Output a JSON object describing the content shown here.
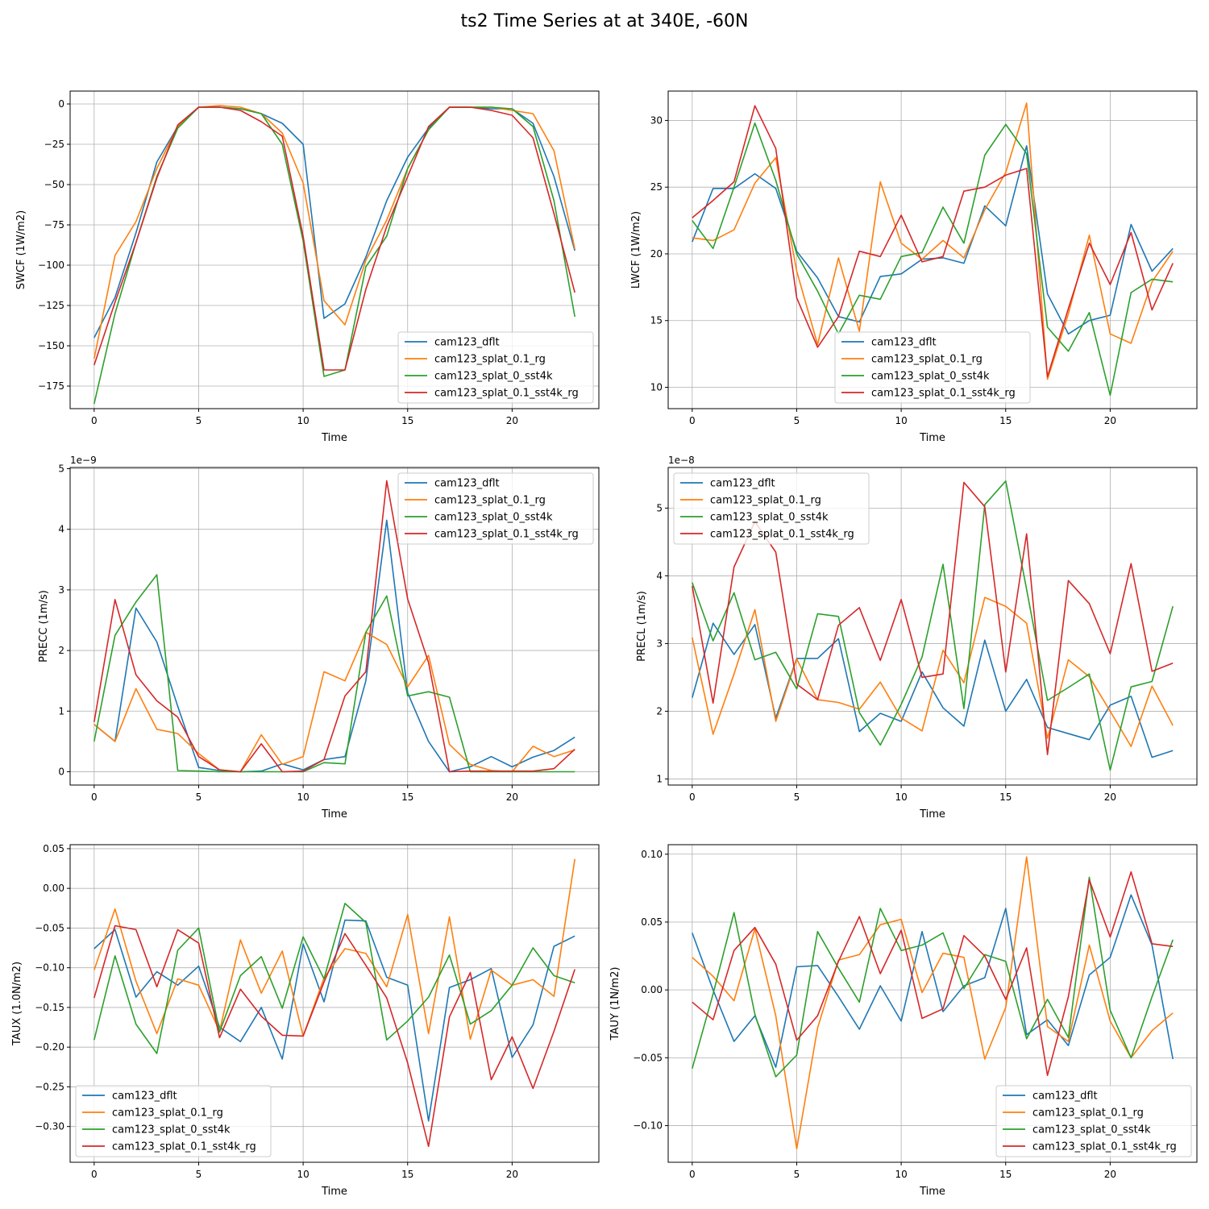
{
  "figure_title": "ts2 Time Series at at 340E, -60N",
  "legend_names": [
    "cam123_dflt",
    "cam123_splat_0.1_rg",
    "cam123_splat_0_sst4k",
    "cam123_splat_0.1_sst4k_rg"
  ],
  "series_colors": [
    "#1f77b4",
    "#ff7f0e",
    "#2ca02c",
    "#d62728"
  ],
  "chart_data": [
    {
      "type": "line",
      "title": "",
      "xlabel": "Time",
      "ylabel": "SWCF (1W/m2)",
      "xlim": [
        -1.15,
        24.15
      ],
      "ylim": [
        -189,
        8
      ],
      "xticks": [
        0,
        5,
        10,
        15,
        20
      ],
      "yticks": [
        0,
        -25,
        -50,
        -75,
        -100,
        -125,
        -150,
        -175
      ],
      "ytick_labels": [
        "0",
        "−25",
        "−50",
        "−75",
        "−100",
        "−125",
        "−150",
        "−175"
      ],
      "offset_label": "",
      "legend_position": "lower-right",
      "x": [
        0,
        1,
        2,
        3,
        4,
        5,
        6,
        7,
        8,
        9,
        10,
        11,
        12,
        13,
        14,
        15,
        16,
        17,
        18,
        19,
        20,
        21,
        22,
        23
      ],
      "series": [
        {
          "name": "cam123_dflt",
          "values": [
            -145,
            -120,
            -80,
            -36,
            -14,
            -2,
            -2,
            -3,
            -6,
            -12,
            -25,
            -133,
            -124,
            -95,
            -60,
            -33,
            -15,
            -2,
            -2,
            -3,
            -3,
            -12,
            -45,
            -91
          ]
        },
        {
          "name": "cam123_splat_0.1_rg",
          "values": [
            -158,
            -94,
            -73,
            -40,
            -14,
            -2,
            -1,
            -2,
            -6,
            -18,
            -49,
            -122,
            -137,
            -97,
            -72,
            -40,
            -16,
            -2,
            -2,
            -2,
            -4,
            -6,
            -29,
            -90
          ]
        },
        {
          "name": "cam123_splat_0_sst4k",
          "values": [
            -186,
            -130,
            -86,
            -45,
            -15,
            -2,
            -2,
            -3,
            -6,
            -25,
            -85,
            -169,
            -165,
            -101,
            -82,
            -40,
            -16,
            -2,
            -2,
            -2,
            -3,
            -14,
            -60,
            -132
          ]
        },
        {
          "name": "cam123_splat_0.1_sst4k_rg",
          "values": [
            -162,
            -123,
            -86,
            -46,
            -13,
            -2,
            -2,
            -4,
            -11,
            -20,
            -82,
            -165,
            -165,
            -115,
            -76,
            -45,
            -14,
            -2,
            -2,
            -4,
            -7,
            -21,
            -68,
            -117
          ]
        }
      ]
    },
    {
      "type": "line",
      "title": "",
      "xlabel": "Time",
      "ylabel": "LWCF (1W/m2)",
      "xlim": [
        -1.15,
        24.15
      ],
      "ylim": [
        8.4,
        32.2
      ],
      "xticks": [
        0,
        5,
        10,
        15,
        20
      ],
      "yticks": [
        10,
        15,
        20,
        25,
        30
      ],
      "ytick_labels": [
        "10",
        "15",
        "20",
        "25",
        "30"
      ],
      "offset_label": "",
      "legend_position": "lower-center",
      "x": [
        0,
        1,
        2,
        3,
        4,
        5,
        6,
        7,
        8,
        9,
        10,
        11,
        12,
        13,
        14,
        15,
        16,
        17,
        18,
        19,
        20,
        21,
        22,
        23
      ],
      "series": [
        {
          "name": "cam123_dflt",
          "values": [
            20.9,
            24.9,
            24.9,
            26.0,
            24.9,
            20.2,
            18.2,
            15.3,
            14.9,
            18.3,
            18.5,
            19.6,
            19.7,
            19.3,
            23.6,
            22.1,
            28.1,
            17.0,
            14.0,
            15.0,
            15.4,
            22.2,
            18.7,
            20.4
          ]
        },
        {
          "name": "cam123_splat_0.1_rg",
          "values": [
            21.2,
            21.0,
            21.8,
            25.3,
            27.2,
            18.7,
            13.2,
            19.7,
            14.2,
            25.4,
            20.8,
            19.6,
            21.0,
            19.7,
            23.3,
            26.1,
            31.3,
            10.6,
            15.5,
            21.4,
            14.0,
            13.3,
            17.9,
            20.2
          ]
        },
        {
          "name": "cam123_splat_0_sst4k",
          "values": [
            22.5,
            20.4,
            25.0,
            29.8,
            25.5,
            20.0,
            17.2,
            14.0,
            16.9,
            16.6,
            19.8,
            20.1,
            23.5,
            20.8,
            27.4,
            29.7,
            27.5,
            14.5,
            12.7,
            15.6,
            9.4,
            17.1,
            18.1,
            17.9
          ]
        },
        {
          "name": "cam123_splat_0.1_sst4k_rg",
          "values": [
            22.7,
            24.0,
            25.4,
            31.1,
            27.9,
            16.7,
            13.0,
            15.3,
            20.2,
            19.8,
            22.9,
            19.4,
            19.8,
            24.7,
            25.0,
            25.9,
            26.4,
            10.8,
            15.9,
            20.8,
            17.7,
            21.6,
            15.8,
            19.3
          ]
        }
      ]
    },
    {
      "type": "line",
      "title": "",
      "xlabel": "Time",
      "ylabel": "PRECC (1m/s)",
      "xlim": [
        -1.15,
        24.15
      ],
      "ylim": [
        -0.22,
        5.02
      ],
      "xticks": [
        0,
        5,
        10,
        15,
        20
      ],
      "yticks": [
        0,
        1,
        2,
        3,
        4,
        5
      ],
      "ytick_labels": [
        "0",
        "1",
        "2",
        "3",
        "4",
        "5"
      ],
      "offset_label": "1e−9",
      "legend_position": "upper-right",
      "x": [
        0,
        1,
        2,
        3,
        4,
        5,
        6,
        7,
        8,
        9,
        10,
        11,
        12,
        13,
        14,
        15,
        16,
        17,
        18,
        19,
        20,
        21,
        22,
        23
      ],
      "series": [
        {
          "name": "cam123_dflt",
          "values": [
            0.78,
            0.5,
            2.7,
            2.14,
            1.08,
            0.07,
            0.02,
            0.0,
            0.01,
            0.13,
            0.03,
            0.2,
            0.25,
            1.5,
            4.15,
            1.3,
            0.5,
            0.0,
            0.08,
            0.25,
            0.08,
            0.24,
            0.35,
            0.57
          ]
        },
        {
          "name": "cam123_splat_0.1_rg",
          "values": [
            0.78,
            0.5,
            1.37,
            0.7,
            0.63,
            0.3,
            0.03,
            0.0,
            0.61,
            0.12,
            0.25,
            1.65,
            1.5,
            2.3,
            2.1,
            1.4,
            1.92,
            0.45,
            0.12,
            0.02,
            0.0,
            0.42,
            0.25,
            0.36
          ]
        },
        {
          "name": "cam123_splat_0_sst4k",
          "values": [
            0.5,
            2.25,
            2.8,
            3.25,
            0.02,
            0.01,
            0.0,
            0.0,
            0.0,
            0.0,
            0.0,
            0.15,
            0.13,
            2.3,
            2.9,
            1.25,
            1.32,
            1.23,
            0.0,
            0.0,
            0.0,
            0.0,
            0.0,
            0.0
          ]
        },
        {
          "name": "cam123_splat_0.1_sst4k_rg",
          "values": [
            0.82,
            2.84,
            1.6,
            1.17,
            0.9,
            0.25,
            0.03,
            0.0,
            0.46,
            0.0,
            0.01,
            0.2,
            1.25,
            1.65,
            4.8,
            2.85,
            1.8,
            0.0,
            0.01,
            0.01,
            0.01,
            0.01,
            0.05,
            0.37
          ]
        }
      ]
    },
    {
      "type": "line",
      "title": "",
      "xlabel": "Time",
      "ylabel": "PRECL (1m/s)",
      "xlim": [
        -1.15,
        24.15
      ],
      "ylim": [
        0.91,
        5.6
      ],
      "xticks": [
        0,
        5,
        10,
        15,
        20
      ],
      "yticks": [
        1,
        2,
        3,
        4,
        5
      ],
      "ytick_labels": [
        "1",
        "2",
        "3",
        "4",
        "5"
      ],
      "offset_label": "1e−8",
      "legend_position": "upper-left",
      "x": [
        0,
        1,
        2,
        3,
        4,
        5,
        6,
        7,
        8,
        9,
        10,
        11,
        12,
        13,
        14,
        15,
        16,
        17,
        18,
        19,
        20,
        21,
        22,
        23
      ],
      "series": [
        {
          "name": "cam123_dflt",
          "values": [
            2.2,
            3.3,
            2.84,
            3.28,
            1.9,
            2.78,
            2.78,
            3.07,
            1.7,
            1.97,
            1.85,
            2.58,
            2.05,
            1.78,
            3.05,
            2.0,
            2.47,
            1.76,
            1.67,
            1.58,
            2.09,
            2.22,
            1.32,
            1.42
          ]
        },
        {
          "name": "cam123_splat_0.1_rg",
          "values": [
            3.09,
            1.66,
            2.55,
            3.5,
            1.85,
            2.77,
            2.17,
            2.13,
            2.03,
            2.43,
            1.9,
            1.71,
            2.9,
            2.42,
            3.68,
            3.55,
            3.3,
            1.6,
            2.76,
            2.51,
            2.0,
            1.48,
            2.37,
            1.79
          ]
        },
        {
          "name": "cam123_splat_0_sst4k",
          "values": [
            3.9,
            3.04,
            3.75,
            2.76,
            2.87,
            2.33,
            3.44,
            3.4,
            1.98,
            1.5,
            2.1,
            2.8,
            4.17,
            2.04,
            5.05,
            5.4,
            3.8,
            2.16,
            2.35,
            2.55,
            1.13,
            2.36,
            2.44,
            3.55
          ]
        },
        {
          "name": "cam123_splat_0.1_sst4k_rg",
          "values": [
            3.85,
            2.12,
            4.13,
            4.8,
            4.35,
            2.4,
            2.17,
            3.27,
            3.53,
            2.75,
            3.65,
            2.5,
            2.55,
            5.38,
            5.02,
            2.58,
            4.62,
            1.36,
            3.93,
            3.59,
            2.85,
            4.18,
            2.59,
            2.71
          ]
        }
      ]
    },
    {
      "type": "line",
      "title": "",
      "xlabel": "Time",
      "ylabel": "TAUX (1.0N/m2)",
      "xlim": [
        -1.15,
        24.15
      ],
      "ylim": [
        -0.345,
        0.055
      ],
      "xticks": [
        0,
        5,
        10,
        15,
        20
      ],
      "yticks": [
        0.05,
        0.0,
        -0.05,
        -0.1,
        -0.15,
        -0.2,
        -0.25,
        -0.3
      ],
      "ytick_labels": [
        "0.05",
        "0.00",
        "−0.05",
        "−0.10",
        "−0.15",
        "−0.20",
        "−0.25",
        "−0.30"
      ],
      "offset_label": "",
      "legend_position": "lower-left",
      "x": [
        0,
        1,
        2,
        3,
        4,
        5,
        6,
        7,
        8,
        9,
        10,
        11,
        12,
        13,
        14,
        15,
        16,
        17,
        18,
        19,
        20,
        21,
        22,
        23
      ],
      "series": [
        {
          "name": "cam123_dflt",
          "values": [
            -0.076,
            -0.052,
            -0.137,
            -0.105,
            -0.122,
            -0.098,
            -0.175,
            -0.193,
            -0.15,
            -0.215,
            -0.07,
            -0.143,
            -0.04,
            -0.041,
            -0.112,
            -0.122,
            -0.293,
            -0.125,
            -0.115,
            -0.101,
            -0.213,
            -0.172,
            -0.073,
            -0.06
          ]
        },
        {
          "name": "cam123_splat_0.1_rg",
          "values": [
            -0.103,
            -0.026,
            -0.117,
            -0.183,
            -0.114,
            -0.122,
            -0.18,
            -0.065,
            -0.132,
            -0.079,
            -0.186,
            -0.113,
            -0.076,
            -0.082,
            -0.124,
            -0.033,
            -0.183,
            -0.036,
            -0.19,
            -0.103,
            -0.122,
            -0.115,
            -0.136,
            0.037
          ]
        },
        {
          "name": "cam123_splat_0_sst4k",
          "values": [
            -0.191,
            -0.085,
            -0.171,
            -0.208,
            -0.078,
            -0.05,
            -0.181,
            -0.11,
            -0.086,
            -0.151,
            -0.061,
            -0.114,
            -0.019,
            -0.043,
            -0.191,
            -0.167,
            -0.137,
            -0.084,
            -0.171,
            -0.154,
            -0.122,
            -0.075,
            -0.11,
            -0.119
          ]
        },
        {
          "name": "cam123_splat_0.1_sst4k_rg",
          "values": [
            -0.138,
            -0.047,
            -0.052,
            -0.124,
            -0.052,
            -0.069,
            -0.188,
            -0.127,
            -0.161,
            -0.185,
            -0.186,
            -0.118,
            -0.057,
            -0.097,
            -0.138,
            -0.22,
            -0.325,
            -0.162,
            -0.106,
            -0.241,
            -0.187,
            -0.252,
            -0.18,
            -0.102
          ]
        }
      ]
    },
    {
      "type": "line",
      "title": "",
      "xlabel": "Time",
      "ylabel": "TAUY (1N/m2)",
      "xlim": [
        -1.15,
        24.15
      ],
      "ylim": [
        -0.127,
        0.107
      ],
      "xticks": [
        0,
        5,
        10,
        15,
        20
      ],
      "yticks": [
        0.1,
        0.05,
        0.0,
        -0.05,
        -0.1
      ],
      "ytick_labels": [
        "0.10",
        "0.05",
        "0.00",
        "−0.05",
        "−0.10"
      ],
      "offset_label": "",
      "legend_position": "lower-right",
      "x": [
        0,
        1,
        2,
        3,
        4,
        5,
        6,
        7,
        8,
        9,
        10,
        11,
        12,
        13,
        14,
        15,
        16,
        17,
        18,
        19,
        20,
        21,
        22,
        23
      ],
      "series": [
        {
          "name": "cam123_dflt",
          "values": [
            0.042,
            0.0,
            -0.038,
            -0.019,
            -0.057,
            0.017,
            0.018,
            -0.005,
            -0.029,
            0.003,
            -0.023,
            0.043,
            -0.016,
            0.003,
            0.009,
            0.06,
            -0.033,
            -0.022,
            -0.041,
            0.011,
            0.024,
            0.07,
            0.033,
            -0.051
          ]
        },
        {
          "name": "cam123_splat_0.1_rg",
          "values": [
            0.024,
            0.01,
            -0.008,
            0.045,
            -0.019,
            -0.117,
            -0.028,
            0.022,
            0.026,
            0.048,
            0.052,
            -0.002,
            0.027,
            0.024,
            -0.051,
            -0.013,
            0.098,
            -0.027,
            -0.038,
            0.033,
            -0.023,
            -0.05,
            -0.03,
            -0.017
          ]
        },
        {
          "name": "cam123_splat_0_sst4k",
          "values": [
            -0.058,
            -0.003,
            0.057,
            -0.018,
            -0.064,
            -0.048,
            0.043,
            0.016,
            -0.009,
            0.06,
            0.029,
            0.033,
            0.042,
            0.001,
            0.026,
            0.021,
            -0.036,
            -0.007,
            -0.035,
            0.083,
            -0.015,
            -0.05,
            -0.005,
            0.037
          ]
        },
        {
          "name": "cam123_splat_0.1_sst4k_rg",
          "values": [
            -0.009,
            -0.022,
            0.029,
            0.046,
            0.019,
            -0.037,
            -0.019,
            0.021,
            0.054,
            0.012,
            0.044,
            -0.021,
            -0.014,
            0.04,
            0.025,
            -0.007,
            0.031,
            -0.063,
            -0.005,
            0.081,
            0.039,
            0.087,
            0.034,
            0.032
          ]
        }
      ]
    }
  ]
}
